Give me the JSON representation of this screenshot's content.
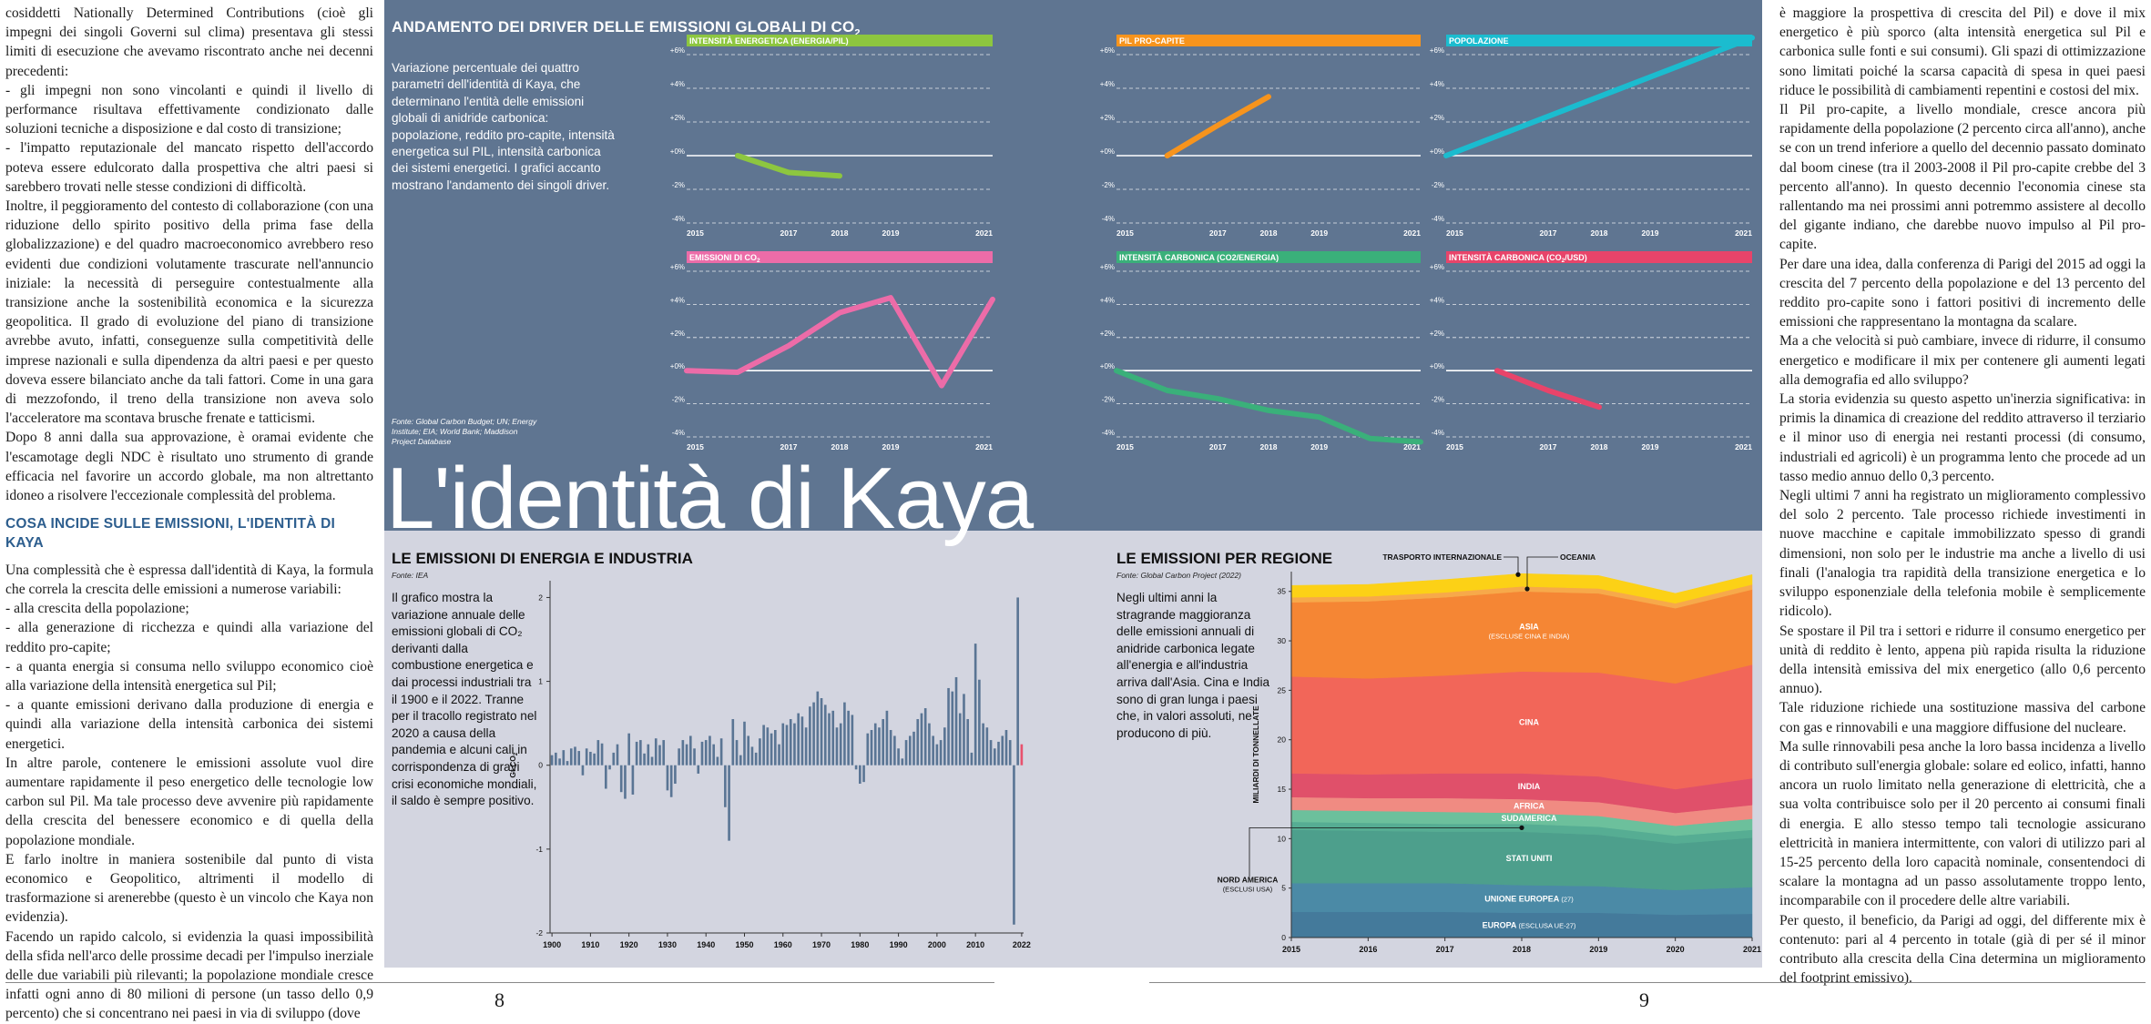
{
  "left_column": {
    "paragraphs": [
      "cosiddetti Nationally Determined Contributions (cioè gli impegni dei singoli Governi sul clima) presentava gli stessi limiti di esecuzione che avevamo riscontrato anche nei decenni precedenti:",
      "- gli impegni non sono vincolanti e quindi il livello di performance risultava effettivamente condizionato dalle soluzioni tecniche a disposizione e dal costo di transizione;",
      "- l'impatto reputazionale del mancato rispetto dell'accordo poteva essere edulcorato dalla prospettiva che altri paesi si sarebbero trovati nelle stesse condizioni di difficoltà.",
      "Inoltre, il peggioramento del contesto di collaborazione (con una riduzione dello spirito positivo della prima fase della globalizzazione) e del quadro macroeconomico avrebbero reso evidenti due condizioni volutamente trascurate nell'annuncio iniziale: la necessità di perseguire contestualmente alla transizione anche la sostenibilità economica e la sicurezza geopolitica. Il grado di evoluzione del piano di transizione avrebbe avuto, infatti, conseguenze sulla competitività delle imprese nazionali e sulla dipendenza da altri paesi e per questo doveva essere bilanciato anche da tali fattori. Come in una gara di mezzofondo, il treno della transizione non aveva solo l'acceleratore ma scontava brusche frenate e tatticismi.",
      "Dopo 8 anni dalla sua approvazione, è oramai evidente che l'escamotage degli NDC è risultato uno strumento di grande efficacia nel favorire un accordo globale, ma non altrettanto idoneo a risolvere l'eccezionale complessità del problema."
    ],
    "heading": "COSA INCIDE SULLE EMISSIONI, L'IDENTITÀ DI KAYA",
    "paragraphs2": [
      "Una complessità che è espressa dall'identità di Kaya, la formula che correla la crescita delle emissioni a numerose variabili:",
      "- alla crescita della popolazione;",
      "- alla generazione di ricchezza e quindi alla variazione del reddito pro-capite;",
      "- a quanta energia si consuma nello sviluppo economico cioè alla variazione della intensità energetica sul Pil;",
      "- a quante emissioni derivano dalla produzione di energia e quindi alla variazione della intensità carbonica dei sistemi energetici.",
      "In altre parole, contenere le emissioni assolute vuol dire aumentare rapidamente il peso energetico delle tecnologie low carbon sul Pil. Ma tale processo deve avvenire più rapidamente della crescita del benessere economico e di quella della popolazione mondiale.",
      "E farlo inoltre in maniera sostenibile dal punto di vista economico e Geopolitico, altrimenti il modello di trasformazione si arenerebbe (questo è un vincolo che Kaya non evidenzia).",
      "Facendo un rapido calcolo, si evidenzia la quasi impossibilità della sfida nell'arco delle prossime decadi per l'impulso inerziale delle due variabili più rilevanti; la popolazione mondiale cresce infatti ogni anno di 80 milioni di persone (un tasso dello 0,9 percento) che si concentrano nei paesi in via di sviluppo (dove"
    ]
  },
  "right_column": {
    "paragraphs": [
      "è maggiore la prospettiva di crescita del Pil) e dove il mix energetico è più sporco (alta intensità energetica sul Pil e carbonica sulle fonti e sui consumi). Gli spazi di ottimizzazione sono limitati poiché la scarsa capacità di spesa in quei paesi riduce le possibilità di cambiamenti repentini e costosi del mix.",
      "Il Pil pro-capite, a livello mondiale, cresce ancora più rapidamente della popolazione (2 percento circa all'anno), anche se con un trend inferiore a quello del decennio passato dominato dal boom cinese (tra il 2003-2008 il Pil pro-capite crebbe del 3 percento all'anno). In questo decennio l'economia cinese sta rallentando ma nei prossimi anni potremmo assistere al decollo del gigante indiano, che darebbe nuovo impulso al Pil pro-capite.",
      "Per dare una idea, dalla conferenza di Parigi del 2015 ad oggi la crescita del 7 percento della popolazione e del 13 percento del reddito pro-capite sono i fattori positivi di incremento delle emissioni che rappresentano la montagna da scalare.",
      "Ma a che velocità si può cambiare, invece di ridurre, il consumo energetico e modificare il mix per contenere gli aumenti legati alla demografia ed allo sviluppo?",
      "La storia evidenzia su questo aspetto un'inerzia significativa: in primis la dinamica di creazione del reddito attraverso il terziario e il minor uso di energia nei restanti processi (di consumo, industriali ed agricoli) è un programma lento che procede ad un tasso medio annuo dello 0,3 percento.",
      "Negli ultimi 7 anni ha registrato un miglioramento complessivo del solo 2 percento. Tale processo richiede investimenti in nuove macchine e capitale immobilizzato spesso di grandi dimensioni, non solo per le industrie ma anche a livello di usi finali (l'analogia tra rapidità della transizione energetica e lo sviluppo esponenziale della telefonia mobile è semplicemente ridicolo).",
      "Se spostare il Pil tra i settori e ridurre il consumo energetico per unità di reddito è lento, appena più rapida risulta la riduzione della intensità emissiva del mix energetico (allo 0,6 percento annuo).",
      "Tale riduzione richiede una sostituzione massiva del carbone con gas e rinnovabili e una maggiore diffusione del nucleare.",
      "Ma sulle rinnovabili pesa anche la loro bassa incidenza a livello di contributo sull'energia globale: solare ed eolico, infatti, hanno ancora un ruolo limitato nella generazione di elettricità, che a sua volta contribuisce solo per il 20 percento ai consumi finali di energia. E allo stesso tempo tali tecnologie assicurano elettricità in maniera intermittente, con valori di utilizzo pari al 15-25 percento della loro capacità nominale, consentendoci di scalare la montagna ad un passo assolutamente troppo lento, incomparabile con il procedere delle altre variabili.",
      "Per questo, il beneficio, da Parigi ad oggi, del differente mix è contenuto: pari al 4 percento in totale (già di per sé il minor contributo alla crescita della Cina determina un miglioramento del footprint emissivo)."
    ]
  },
  "page_numbers": {
    "left": "8",
    "right": "9"
  },
  "top_section": {
    "title": "ANDAMENTO DEI DRIVER DELLE EMISSIONI GLOBALI DI CO",
    "title_sub": "2",
    "description": "Variazione percentuale dei quattro parametri dell'identità di Kaya, che determinano l'entità delle emissioni globali di anidride carbonica: popolazione, reddito pro-capite, intensità energetica sul PIL, intensità carbonica dei sistemi energetici. I grafici accanto mostrano l'andamento dei singoli driver.",
    "source": "Fonte: Global Carbon Budget; UN; Energy Institute; EIA; World Bank; Maddison Project Database",
    "big_title": "L'identità di Kaya"
  },
  "bottom_left": {
    "title": "LE EMISSIONI DI ENERGIA E INDUSTRIA",
    "source": "Fonte: IEA",
    "description": "Il grafico mostra la variazione annuale delle emissioni globali di CO₂ derivanti dalla combustione energetica e dai processi industriali tra il 1900 e il 2022. Tranne per il tracollo registrato nel 2020 a causa della pandemia e alcuni cali in corrispondenza di gravi crisi economiche mondiali, il saldo è sempre positivo."
  },
  "bottom_right": {
    "title": "LE EMISSIONI PER REGIONE",
    "source": "Fonte: Global Carbon Project (2022)",
    "description": "Negli ultimi anni la stragrande maggioranza delle emissioni annuali di anidride carbonica legate all'energia e all'industria arriva dall'Asia. Cina e India sono di gran lunga i paesi che, in valori assoluti, ne producono di più."
  },
  "colors": {
    "panel_bg": "#5f7591",
    "bottom_bg": "#d3d5e0",
    "bar_blue": "#5a7594",
    "highlight_pink": "#e8526e"
  },
  "chart_data": [
    {
      "type": "line",
      "title": "INTENSITÀ ENERGETICA (ENERGIA/PIL)",
      "color": "#8dc63f",
      "x": [
        2016,
        2017,
        2018
      ],
      "y": [
        0.0,
        -1.0,
        -1.2
      ],
      "xticks": [
        "2015",
        "2017",
        "2018",
        "2019",
        "2021"
      ],
      "yticks": [
        "+6%",
        "+4%",
        "+2%",
        "+0%",
        "-2%",
        "-4%"
      ],
      "ylim": [
        -4,
        6
      ]
    },
    {
      "type": "line",
      "title": "PIL PRO-CAPITE",
      "color": "#f7941d",
      "x": [
        2016,
        2017,
        2018
      ],
      "y": [
        0.0,
        1.8,
        3.5
      ],
      "xticks": [
        "2015",
        "2017",
        "2018",
        "2019",
        "2021"
      ],
      "yticks": [
        "+6%",
        "+4%",
        "+2%",
        "+0%",
        "-2%",
        "-4%"
      ],
      "ylim": [
        -4,
        6
      ]
    },
    {
      "type": "line",
      "title": "POPOLAZIONE",
      "color": "#1bbccf",
      "x": [
        2015,
        2021
      ],
      "y": [
        0.0,
        7.0
      ],
      "xticks": [
        "2015",
        "2017",
        "2018",
        "2019",
        "2021"
      ],
      "yticks": [
        "+6%",
        "+4%",
        "+2%",
        "+0%",
        "-2%",
        "-4%"
      ],
      "ylim": [
        -4,
        6
      ]
    },
    {
      "type": "line",
      "title": "EMISSIONI DI CO",
      "title_sub": "2",
      "color": "#ec6ca8",
      "x": [
        2015,
        2016,
        2017,
        2018,
        2019,
        2020,
        2021
      ],
      "y": [
        0.0,
        -0.1,
        1.5,
        3.5,
        4.4,
        -0.9,
        4.3
      ],
      "xticks": [
        "2015",
        "2017",
        "2018",
        "2019",
        "2021"
      ],
      "yticks": [
        "+6%",
        "+4%",
        "+2%",
        "+0%",
        "-2%",
        "-4%"
      ],
      "ylim": [
        -4,
        6
      ]
    },
    {
      "type": "line",
      "title": "INTENSITÀ CARBONICA (CO2/ENERGIA)",
      "color": "#3ab07a",
      "x": [
        2015,
        2016,
        2017,
        2018,
        2019,
        2020,
        2021
      ],
      "y": [
        0.0,
        -1.2,
        -1.7,
        -2.4,
        -2.8,
        -4.1,
        -4.3
      ],
      "xticks": [
        "2015",
        "2017",
        "2018",
        "2019",
        "2021"
      ],
      "yticks": [
        "+6%",
        "+4%",
        "+2%",
        "+0%",
        "-2%",
        "-4%"
      ],
      "ylim": [
        -4,
        6
      ]
    },
    {
      "type": "line",
      "title": "INTENSITÀ CARBONICA (CO",
      "title_sub": "2",
      "title_tail": "/USD)",
      "color": "#e8446a",
      "x": [
        2016,
        2017,
        2018
      ],
      "y": [
        0.0,
        -1.2,
        -2.2
      ],
      "xticks": [
        "2015",
        "2017",
        "2018",
        "2019",
        "2021"
      ],
      "yticks": [
        "+6%",
        "+4%",
        "+2%",
        "+0%",
        "-2%",
        "-4%"
      ],
      "ylim": [
        -4,
        6
      ]
    },
    {
      "type": "bar",
      "ylabel": "Gt CO",
      "ylabel_sub": "2",
      "ylim": [
        -2,
        2.2
      ],
      "yticks": [
        "2",
        "1",
        "0",
        "-1",
        "-2"
      ],
      "xticks": [
        "1900",
        "1910",
        "1920",
        "1930",
        "1940",
        "1950",
        "1960",
        "1970",
        "1980",
        "1990",
        "2000",
        "2010",
        "2022"
      ],
      "x_start": 1900,
      "x_end": 2022,
      "values": [
        0.12,
        0.15,
        0.08,
        0.18,
        0.05,
        0.2,
        0.22,
        0.17,
        -0.12,
        0.2,
        0.16,
        0.14,
        0.3,
        0.26,
        -0.28,
        -0.05,
        0.15,
        0.25,
        -0.32,
        -0.4,
        0.38,
        -0.35,
        0.28,
        0.3,
        0.14,
        0.25,
        0.1,
        0.32,
        0.24,
        0.3,
        -0.3,
        -0.38,
        -0.22,
        0.2,
        0.3,
        0.25,
        0.35,
        0.2,
        -0.1,
        0.28,
        0.3,
        0.35,
        0.25,
        0.1,
        0.32,
        -0.5,
        -0.9,
        0.55,
        0.3,
        0.12,
        0.52,
        0.35,
        0.22,
        0.15,
        0.32,
        0.48,
        0.45,
        0.38,
        0.42,
        0.25,
        0.5,
        0.48,
        0.55,
        0.5,
        0.62,
        0.58,
        0.45,
        0.7,
        0.75,
        0.88,
        0.8,
        0.72,
        0.62,
        0.65,
        0.45,
        0.5,
        0.75,
        0.65,
        0.6,
        -0.05,
        -0.22,
        -0.2,
        0.38,
        0.42,
        0.5,
        0.45,
        0.55,
        0.65,
        0.42,
        0.35,
        0.2,
        0.08,
        0.3,
        0.35,
        0.4,
        0.55,
        0.62,
        0.68,
        0.5,
        0.35,
        0.25,
        0.3,
        0.45,
        0.92,
        0.88,
        1.05,
        0.62,
        0.85,
        0.55,
        0.15,
        1.45,
        1.02,
        0.5,
        0.45,
        0.3,
        0.2,
        0.28,
        0.35,
        0.42,
        0.3,
        -1.9,
        2.0,
        0.25
      ],
      "highlight_last": true
    },
    {
      "type": "area",
      "ylabel": "MILIARDI DI TONNELLATE",
      "ylim": [
        0,
        37
      ],
      "yticks": [
        "0",
        "5",
        "10",
        "15",
        "20",
        "25",
        "30",
        "35"
      ],
      "x": [
        "2015",
        "2016",
        "2017",
        "2018",
        "2019",
        "2020",
        "2021"
      ],
      "series": [
        {
          "name": "EUROPA",
          "name_sub": "(ESCLUSA UE-27)",
          "color": "#447a9b",
          "values": [
            2.6,
            2.6,
            2.6,
            2.5,
            2.5,
            2.3,
            2.4
          ]
        },
        {
          "name": "UNIONE EUROPEA",
          "name_sub": "(27)",
          "color": "#4b8aa6",
          "values": [
            2.9,
            2.9,
            2.9,
            2.8,
            2.7,
            2.5,
            2.7
          ]
        },
        {
          "name": "STATI UNITI",
          "color": "#4d9f8c",
          "values": [
            5.4,
            5.3,
            5.2,
            5.4,
            5.2,
            4.7,
            5.0
          ]
        },
        {
          "name": "NORD AMERICA",
          "name_sub": "(ESCLUSI USA)",
          "color": "#56ad93",
          "values": [
            0.8,
            0.8,
            0.8,
            0.8,
            0.8,
            0.8,
            0.8
          ]
        },
        {
          "name": "SUDAMERICA",
          "color": "#6cc09c",
          "values": [
            1.2,
            1.2,
            1.2,
            1.1,
            1.1,
            1.0,
            1.1
          ]
        },
        {
          "name": "AFRICA",
          "color": "#f08b82",
          "values": [
            1.3,
            1.3,
            1.4,
            1.4,
            1.4,
            1.3,
            1.4
          ]
        },
        {
          "name": "INDIA",
          "color": "#e0506a",
          "values": [
            2.4,
            2.4,
            2.5,
            2.6,
            2.6,
            2.4,
            2.7
          ]
        },
        {
          "name": "CINA",
          "color": "#f26659",
          "values": [
            9.8,
            9.7,
            9.9,
            10.3,
            10.5,
            10.7,
            11.5
          ]
        },
        {
          "name": "ASIA",
          "name_sub": "(ESCLUSE CINA E INDIA)",
          "color": "#f58634",
          "values": [
            7.5,
            7.8,
            7.9,
            8.1,
            8.0,
            7.6,
            7.6
          ]
        },
        {
          "name": "OCEANIA",
          "color": "#f7a94a",
          "values": [
            0.5,
            0.5,
            0.5,
            0.5,
            0.5,
            0.5,
            0.5
          ]
        },
        {
          "name": "TRASPORTO INTERNAZIONALE",
          "color": "#fcd116",
          "values": [
            1.2,
            1.2,
            1.3,
            1.3,
            1.3,
            1.0,
            1.0
          ]
        }
      ]
    }
  ]
}
